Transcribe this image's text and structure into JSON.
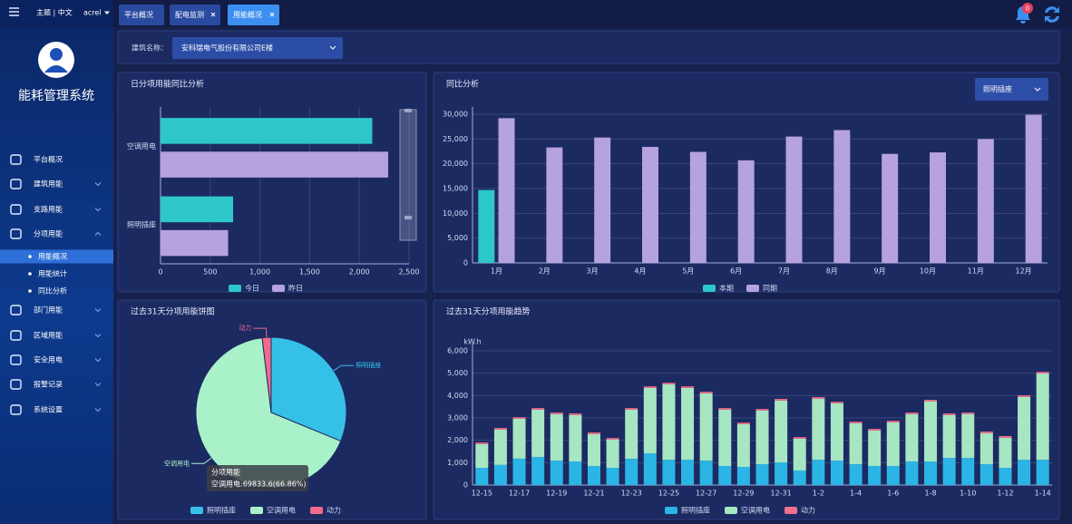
{
  "header": {
    "theme": "主题 | 中文",
    "user": "acrel",
    "notifications": 0
  },
  "sidebar": {
    "title": "能耗管理系统",
    "menu": [
      {
        "label": "平台概况"
      },
      {
        "label": "建筑用能"
      },
      {
        "label": "支路用能"
      },
      {
        "label": "分项用能",
        "children": [
          "用能概况",
          "用能统计",
          "同比分析"
        ]
      },
      {
        "label": "部门用能"
      },
      {
        "label": "区域用能"
      },
      {
        "label": "安全用电"
      },
      {
        "label": "报警记录"
      },
      {
        "label": "系统设置"
      }
    ]
  },
  "tabs": [
    "平台概况",
    "配电监测",
    "用能概况"
  ],
  "filter": {
    "label": "建筑名称：",
    "value": "安科瑞电气股份有限公司E楼"
  },
  "chart_data": [
    {
      "type": "hbar",
      "title": "日分项用能同比分析",
      "categories": [
        "空调用电",
        "照明插座"
      ],
      "series": [
        {
          "name": "今日",
          "color": "#2ec7c9",
          "values": [
            2130,
            730
          ]
        },
        {
          "name": "昨日",
          "color": "#b6a2de",
          "values": [
            2290,
            680
          ]
        }
      ],
      "xlim": [
        0,
        2500
      ],
      "xticks": [
        0,
        500,
        {
          "value": 1000,
          "label": "1,000"
        },
        {
          "value": 1500,
          "label": "1,500"
        },
        {
          "value": 2000,
          "label": "2,000"
        },
        {
          "value": 2500,
          "label": "2,500"
        }
      ],
      "grid": true
    },
    {
      "type": "bar",
      "title": "同比分析",
      "selector": "照明插座",
      "categories": [
        "1月",
        "2月",
        "3月",
        "4月",
        "5月",
        "6月",
        "7月",
        "8月",
        "9月",
        "10月",
        "11月",
        "12月"
      ],
      "series": [
        {
          "name": "本期",
          "color": "#2ec7c9",
          "values": [
            14700,
            null,
            null,
            null,
            null,
            null,
            null,
            null,
            null,
            null,
            null,
            null
          ]
        },
        {
          "name": "同期",
          "color": "#b6a2de",
          "values": [
            29200,
            23300,
            25300,
            23400,
            22400,
            20700,
            25500,
            26800,
            22000,
            22300,
            25000,
            29900
          ]
        }
      ],
      "ylim": [
        0,
        30000
      ],
      "yticks": [
        0,
        {
          "value": 5000,
          "label": "5,000"
        },
        {
          "value": 10000,
          "label": "10,000"
        },
        {
          "value": 15000,
          "label": "15,000"
        },
        {
          "value": 20000,
          "label": "20,000"
        },
        {
          "value": 25000,
          "label": "25,000"
        },
        {
          "value": 30000,
          "label": "30,000"
        }
      ],
      "grid": true
    },
    {
      "type": "pie",
      "title": "过去31天分项用能饼图",
      "categories": [
        "照明插座",
        "空调用电",
        "动力"
      ],
      "values": [
        32600,
        69833.6,
        2000
      ],
      "colors": [
        "#35c0e8",
        "#a9f2c9",
        "#f06b8c"
      ],
      "tooltip": {
        "title": "分项用能",
        "text": "空调用电:69833.6(66.86%)"
      }
    },
    {
      "type": "stacked_bar",
      "title": "过去31天分项用能趋势",
      "y_label": "kW.h",
      "categories": [
        "12-15",
        null,
        "12-17",
        null,
        "12-19",
        null,
        "12-21",
        null,
        "12-23",
        null,
        "12-25",
        null,
        "12-27",
        null,
        "12-29",
        null,
        "12-31",
        null,
        "1-2",
        null,
        "1-4",
        null,
        "1-6",
        null,
        "1-8",
        null,
        "1-10",
        null,
        "1-12",
        null,
        "1-14"
      ],
      "series": [
        {
          "name": "照明插座",
          "color": "#2bb5e6",
          "values": [
            770,
            900,
            1180,
            1250,
            1090,
            1050,
            850,
            770,
            1170,
            1410,
            1130,
            1130,
            1090,
            850,
            810,
            930,
            1010,
            650,
            1130,
            1090,
            930,
            850,
            850,
            1050,
            1050,
            1210,
            1210,
            930,
            770,
            1130,
            1130
          ]
        },
        {
          "name": "空调用电",
          "color": "#a6e6c2",
          "values": [
            1060,
            1580,
            1780,
            2120,
            2080,
            2080,
            1430,
            1260,
            2200,
            2930,
            3370,
            3210,
            3010,
            2520,
            1910,
            2400,
            2770,
            1420,
            2730,
            2560,
            1830,
            1590,
            1950,
            2120,
            2690,
            1920,
            1960,
            1390,
            1350,
            2810,
            3860
          ]
        },
        {
          "name": "动力",
          "color": "#ef6f8e",
          "values": [
            70,
            70,
            70,
            70,
            70,
            70,
            70,
            70,
            70,
            70,
            70,
            70,
            70,
            70,
            70,
            70,
            70,
            70,
            70,
            70,
            70,
            70,
            70,
            70,
            70,
            70,
            70,
            70,
            70,
            70,
            70
          ]
        }
      ],
      "ylim": [
        0,
        6000
      ],
      "yticks": [
        0,
        {
          "value": 1000,
          "label": "1,000"
        },
        {
          "value": 2000,
          "label": "2,000"
        },
        {
          "value": 3000,
          "label": "3,000"
        },
        {
          "value": 4000,
          "label": "4,000"
        },
        {
          "value": 5000,
          "label": "5,000"
        },
        {
          "value": 6000,
          "label": "6,000"
        }
      ],
      "grid": true
    }
  ]
}
